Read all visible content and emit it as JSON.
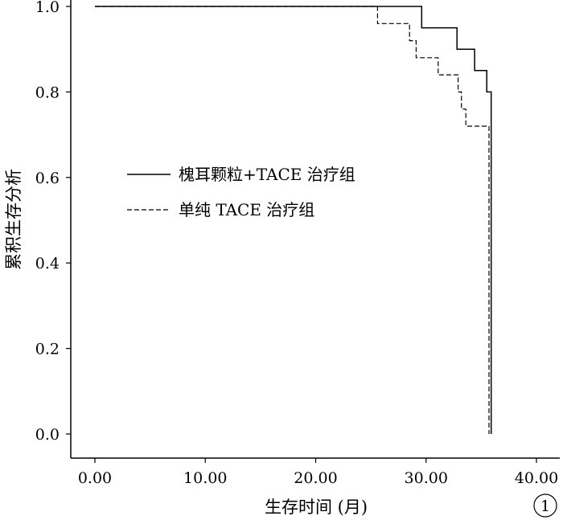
{
  "chart_data": {
    "type": "line",
    "subtype": "step",
    "xlabel": "生存时间 (月)",
    "ylabel": "累积生存分析",
    "xlim": [
      0,
      40
    ],
    "ylim": [
      0,
      1.0
    ],
    "x_ticks": [
      0,
      10,
      20,
      30,
      40
    ],
    "x_tick_labels": [
      "0.00",
      "10.00",
      "20.00",
      "30.00",
      "40.00"
    ],
    "y_ticks": [
      0,
      0.2,
      0.4,
      0.6,
      0.8,
      1.0
    ],
    "y_tick_labels": [
      "0.0",
      "0.2",
      "0.4",
      "0.6",
      "0.8",
      "1.0"
    ],
    "grid": false,
    "legend_position": "center-left",
    "panel_label": "1",
    "series": [
      {
        "name": "槐耳颗粒+TACE 治疗组",
        "line_style": "solid",
        "x": [
          0,
          29.6,
          29.6,
          32.8,
          32.8,
          34.4,
          34.4,
          35.5,
          35.5,
          35.9,
          35.9
        ],
        "y": [
          1.0,
          1.0,
          0.95,
          0.95,
          0.9,
          0.9,
          0.85,
          0.85,
          0.8,
          0.8,
          0.0
        ]
      },
      {
        "name": "单纯 TACE 治疗组",
        "line_style": "dashed",
        "x": [
          0,
          25.6,
          25.6,
          28.5,
          28.5,
          29.1,
          29.1,
          31.1,
          31.1,
          31.7,
          31.7,
          32.9,
          32.9,
          33.2,
          33.2,
          33.6,
          33.6,
          35.7,
          35.7
        ],
        "y": [
          1.0,
          1.0,
          0.96,
          0.96,
          0.92,
          0.92,
          0.88,
          0.88,
          0.84,
          0.84,
          0.84,
          0.84,
          0.8,
          0.8,
          0.76,
          0.76,
          0.72,
          0.72,
          0.0
        ]
      }
    ]
  }
}
